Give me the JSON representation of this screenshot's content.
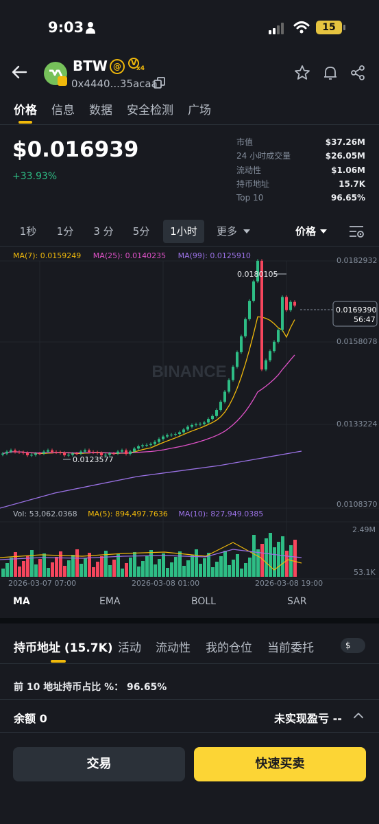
{
  "status_bar": {
    "time": "9:03",
    "battery": "15"
  },
  "token": {
    "name": "BTW",
    "address": "0x4440...35acaa",
    "tag_at": "@",
    "tag_v": "V",
    "tag_v_multiplier": "x4"
  },
  "tabs": [
    "价格",
    "信息",
    "数据",
    "安全检测",
    "广场"
  ],
  "price": {
    "value": "$0.016939",
    "change": "+33.93%"
  },
  "stats": [
    {
      "label": "市值",
      "value": "$37.26M"
    },
    {
      "label": "24 小时成交量",
      "value": "$26.05M"
    },
    {
      "label": "流动性",
      "value": "$1.06M"
    },
    {
      "label": "持币地址",
      "value": "15.7K"
    },
    {
      "label": "Top 10",
      "value": "96.65%"
    }
  ],
  "intervals": [
    "1秒",
    "1分",
    "3 分",
    "5分",
    "1小时",
    "更多"
  ],
  "price_selector": "价格",
  "chart": {
    "ma_legend": [
      "MA(7): 0.0159249",
      "MA(25): 0.0140235",
      "MA(99): 0.0125910"
    ],
    "vol_legend": [
      "Vol: 53,062.0368",
      "MA(5): 894,497.7636",
      "MA(10): 827,949.0385"
    ],
    "price_ticks": [
      "0.0182932",
      "0.0158078",
      "0.0133224",
      "0.0108370"
    ],
    "vol_ticks": [
      "2.49M",
      "53.1K"
    ],
    "high_label": "0.0180105",
    "low_label": "0.0123577",
    "current_price": "0.0169390",
    "countdown": "56:47",
    "x_labels": [
      "2026-03-07 07:00",
      "2026-03-08 01:00",
      "2026-03-08 19:00"
    ],
    "watermark": "BINANCE",
    "colors": {
      "up": "#2ebd85",
      "down": "#f6465d",
      "ma7": "#f0b90b",
      "ma25": "#e052c8",
      "ma99": "#9b72e6"
    }
  },
  "indicators": [
    "MA",
    "EMA",
    "BOLL",
    "SAR"
  ],
  "holder_tabs": [
    "持币地址 (15.7K)",
    "活动",
    "流动性",
    "我的仓位",
    "当前委托"
  ],
  "currency_chip": "$",
  "top10": {
    "label": "前 10 地址持币占比 %：",
    "value": "96.65%"
  },
  "balance": {
    "label": "余额",
    "value": "0"
  },
  "unrealized": {
    "label": "未实现盈亏",
    "value": "--"
  },
  "buttons": {
    "trade": "交易",
    "quick": "快速买卖"
  }
}
